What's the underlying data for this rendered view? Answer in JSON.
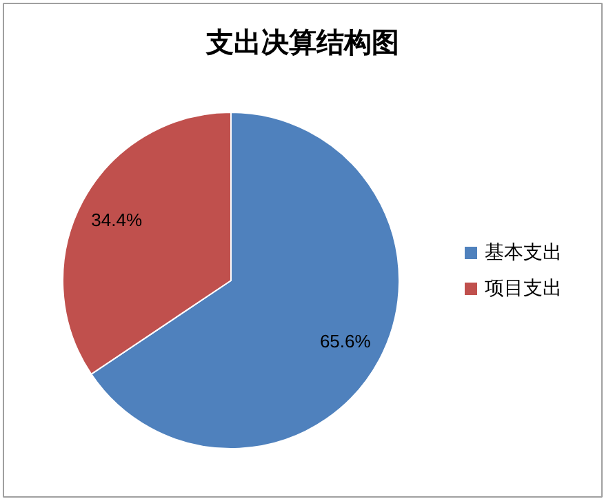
{
  "chart_data": {
    "type": "pie",
    "title": "支出决算结构图",
    "categories": [
      "基本支出",
      "项目支出"
    ],
    "values": [
      65.6,
      34.4
    ],
    "colors": [
      "#4f81bd",
      "#c0504d"
    ],
    "value_labels": [
      "65.6%",
      "34.4%"
    ],
    "legend": "right"
  }
}
